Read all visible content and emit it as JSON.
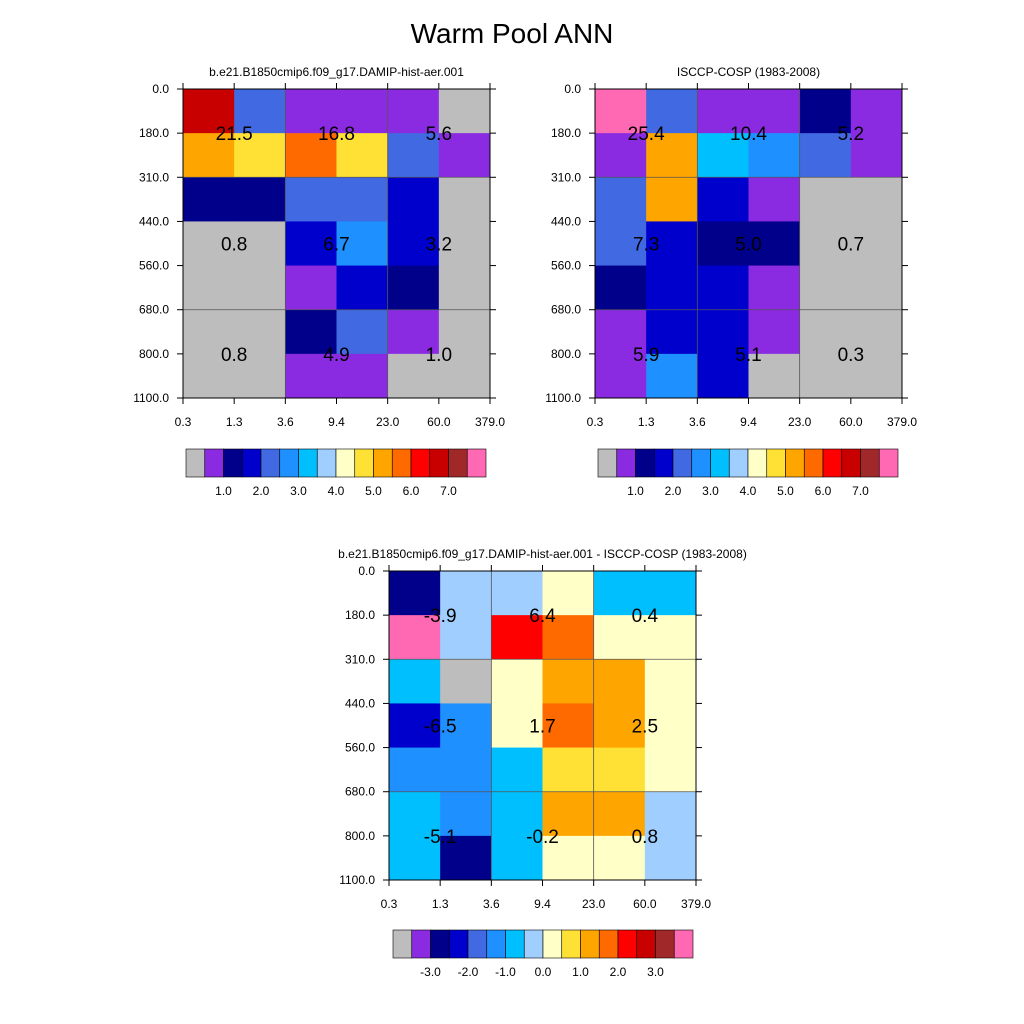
{
  "title": "Warm Pool ANN",
  "palette_abs": [
    "#bdbdbd",
    "#8a2be2",
    "#00008b",
    "#0000cd",
    "#4169e1",
    "#1e90ff",
    "#00bfff",
    "#a0cfff",
    "#ffffc8",
    "#ffe135",
    "#ffa500",
    "#ff6a00",
    "#ff0000",
    "#c80000",
    "#a02828",
    "#ff69b4"
  ],
  "palette_diff": [
    "#bdbdbd",
    "#8a2be2",
    "#00008b",
    "#0000cd",
    "#4169e1",
    "#1e90ff",
    "#00bfff",
    "#a0cfff",
    "#ffffc8",
    "#ffe135",
    "#ffa500",
    "#ff6a00",
    "#ff0000",
    "#c80000",
    "#a02828",
    "#ff69b4"
  ],
  "chart_data": [
    {
      "type": "heatmap",
      "title": "b.e21.B1850cmip6.f09_g17.DAMIP-hist-aer.001",
      "x_ticks": [
        "0.3",
        "1.3",
        "3.6",
        "9.4",
        "23.0",
        "60.0",
        "379.0"
      ],
      "y_ticks": [
        "0.0",
        "180.0",
        "310.0",
        "440.0",
        "560.0",
        "680.0",
        "800.0",
        "1100.0"
      ],
      "cells": [
        [
          13,
          4,
          1,
          1,
          1,
          0
        ],
        [
          10,
          9,
          11,
          9,
          4,
          1
        ],
        [
          2,
          2,
          4,
          4,
          3,
          0
        ],
        [
          0,
          0,
          3,
          5,
          3,
          0
        ],
        [
          0,
          0,
          1,
          3,
          2,
          0
        ],
        [
          0,
          0,
          2,
          4,
          1,
          0
        ],
        [
          0,
          0,
          1,
          1,
          0,
          0
        ]
      ],
      "block_labels": [
        [
          "21.5",
          "16.8",
          "5.6"
        ],
        [
          "0.8",
          "6.7",
          "3.2"
        ],
        [
          "0.8",
          "4.9",
          "1.0"
        ]
      ],
      "colorbar_labels": [
        "1.0",
        "2.0",
        "3.0",
        "4.0",
        "5.0",
        "6.0",
        "7.0"
      ]
    },
    {
      "type": "heatmap",
      "title": "ISCCP-COSP (1983-2008)",
      "x_ticks": [
        "0.3",
        "1.3",
        "3.6",
        "9.4",
        "23.0",
        "60.0",
        "379.0"
      ],
      "y_ticks": [
        "0.0",
        "180.0",
        "310.0",
        "440.0",
        "560.0",
        "680.0",
        "800.0",
        "1100.0"
      ],
      "cells": [
        [
          15,
          4,
          1,
          1,
          2,
          1
        ],
        [
          1,
          10,
          6,
          5,
          4,
          1
        ],
        [
          4,
          10,
          3,
          1,
          0,
          0
        ],
        [
          4,
          3,
          2,
          2,
          0,
          0
        ],
        [
          2,
          3,
          3,
          1,
          0,
          0
        ],
        [
          1,
          3,
          3,
          1,
          0,
          0
        ],
        [
          1,
          5,
          3,
          0,
          0,
          0
        ]
      ],
      "block_labels": [
        [
          "25.4",
          "10.4",
          "5.2"
        ],
        [
          "7.3",
          "5.0",
          "0.7"
        ],
        [
          "5.9",
          "5.1",
          "0.3"
        ]
      ],
      "colorbar_labels": [
        "1.0",
        "2.0",
        "3.0",
        "4.0",
        "5.0",
        "6.0",
        "7.0"
      ]
    },
    {
      "type": "heatmap",
      "title": "b.e21.B1850cmip6.f09_g17.DAMIP-hist-aer.001 - ISCCP-COSP (1983-2008)",
      "x_ticks": [
        "0.3",
        "1.3",
        "3.6",
        "9.4",
        "23.0",
        "60.0",
        "379.0"
      ],
      "y_ticks": [
        "0.0",
        "180.0",
        "310.0",
        "440.0",
        "560.0",
        "680.0",
        "800.0",
        "1100.0"
      ],
      "cells": [
        [
          2,
          7,
          7,
          8,
          6,
          6
        ],
        [
          15,
          7,
          12,
          11,
          8,
          8
        ],
        [
          6,
          0,
          8,
          10,
          10,
          8
        ],
        [
          3,
          5,
          8,
          11,
          10,
          8
        ],
        [
          5,
          5,
          6,
          9,
          9,
          8
        ],
        [
          6,
          5,
          6,
          10,
          10,
          7
        ],
        [
          6,
          2,
          6,
          8,
          8,
          7
        ]
      ],
      "block_labels": [
        [
          "-3.9",
          "6.4",
          "0.4"
        ],
        [
          "-6.5",
          "1.7",
          "2.5"
        ],
        [
          "-5.1",
          "-0.2",
          "0.8"
        ]
      ],
      "colorbar_labels": [
        "-3.0",
        "-2.0",
        "-1.0",
        "0.0",
        "1.0",
        "2.0",
        "3.0"
      ]
    }
  ]
}
